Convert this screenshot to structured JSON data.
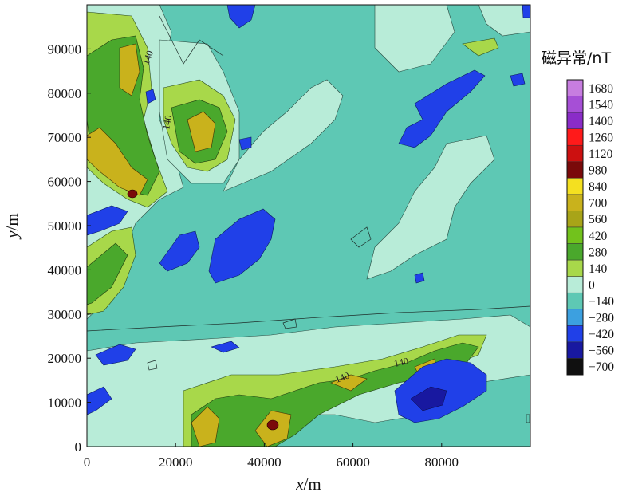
{
  "chart_data": {
    "type": "heatmap",
    "subtype": "filled-contour",
    "title": "",
    "xlabel": {
      "var": "x",
      "unit": "m"
    },
    "ylabel": {
      "var": "y",
      "unit": "m"
    },
    "xlim": [
      0,
      100000
    ],
    "ylim": [
      0,
      100000
    ],
    "xticks": [
      "0",
      "20000",
      "40000",
      "60000",
      "80000"
    ],
    "yticks": [
      "0",
      "10000",
      "20000",
      "30000",
      "40000",
      "50000",
      "60000",
      "70000",
      "80000",
      "90000"
    ],
    "colorbar": {
      "title": "磁异常/nT",
      "levels": [
        "1680",
        "1540",
        "1400",
        "1260",
        "1120",
        "980",
        "840",
        "700",
        "560",
        "420",
        "280",
        "140",
        "0",
        "−140",
        "−280",
        "−420",
        "−560",
        "−700"
      ],
      "colors": [
        "#c77de0",
        "#a64fd6",
        "#8a2cc8",
        "#ff1a1a",
        "#cc1010",
        "#7a0a0a",
        "#f4e020",
        "#c9b21c",
        "#a8a418",
        "#72c21c",
        "#4aa82c",
        "#a8d84a",
        "#b8ecd8",
        "#5ec8b4",
        "#3ca0e0",
        "#2040e8",
        "#1818a0",
        "#101010"
      ]
    },
    "contour_labels": [
      "140",
      "140",
      "140",
      "140"
    ],
    "background_level": "−140",
    "grid": false
  }
}
